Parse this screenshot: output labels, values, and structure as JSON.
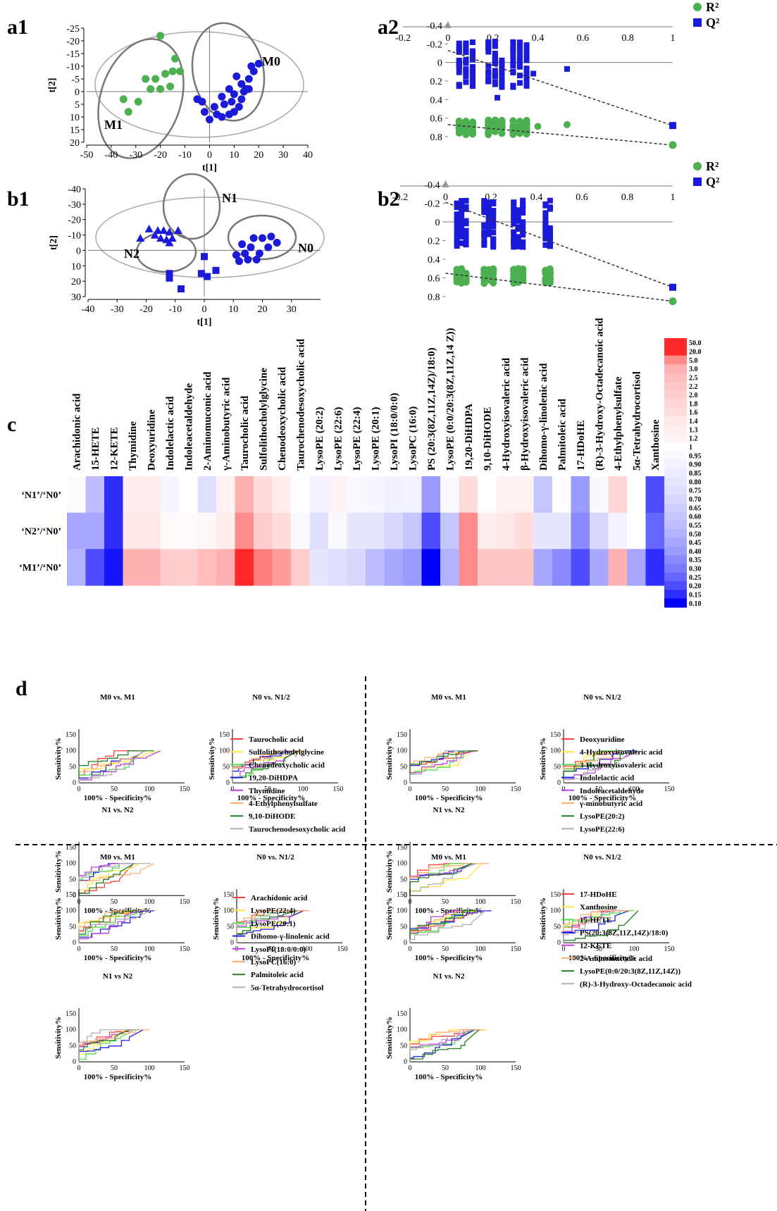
{
  "panels": {
    "a1": "a1",
    "a2": "a2",
    "b1": "b1",
    "b2": "b2",
    "c": "c",
    "d": "d"
  },
  "colors": {
    "green": "#4caf50",
    "blue": "#1a1ad8",
    "line": "#444444"
  },
  "chart_data": [
    {
      "id": "a1",
      "type": "scatter",
      "xlabel": "t[1]",
      "ylabel": "t[2]",
      "xlim": [
        -50,
        40
      ],
      "ylim": [
        -25,
        20
      ],
      "xticks": [
        -50,
        -40,
        -30,
        -20,
        -10,
        0,
        10,
        20,
        30,
        40
      ],
      "yticks": [
        -25,
        -20,
        -15,
        -10,
        -5,
        0,
        5,
        10,
        15,
        20
      ],
      "series": [
        {
          "name": "M1",
          "marker": "circle",
          "color": "#4caf50",
          "points": [
            [
              -33,
              8
            ],
            [
              -29,
              4
            ],
            [
              -35,
              3
            ],
            [
              -24,
              -1
            ],
            [
              -22,
              -5
            ],
            [
              -20,
              -1
            ],
            [
              -16,
              -2
            ],
            [
              -18,
              -7
            ],
            [
              -15,
              -8
            ],
            [
              -12,
              -8
            ],
            [
              -14,
              -13
            ],
            [
              -20,
              -22
            ],
            [
              -26,
              -5
            ]
          ]
        },
        {
          "name": "M0",
          "marker": "circle",
          "color": "#1a1ad8",
          "points": [
            [
              0,
              11
            ],
            [
              3,
              9
            ],
            [
              5,
              10
            ],
            [
              8,
              9
            ],
            [
              10,
              8
            ],
            [
              12,
              6
            ],
            [
              -2,
              8
            ],
            [
              2,
              6
            ],
            [
              6,
              5
            ],
            [
              9,
              4
            ],
            [
              13,
              3
            ],
            [
              -3,
              4
            ],
            [
              5,
              2
            ],
            [
              10,
              1
            ],
            [
              14,
              0
            ],
            [
              16,
              -1
            ],
            [
              13,
              -3
            ],
            [
              16,
              -5
            ],
            [
              11,
              -6
            ],
            [
              18,
              -8
            ],
            [
              20,
              -11
            ],
            [
              17,
              -10
            ],
            [
              15,
              -1
            ],
            [
              -5,
              3
            ],
            [
              8,
              -1
            ]
          ]
        }
      ],
      "group_labels": [
        "M1",
        "M0"
      ]
    },
    {
      "id": "a2",
      "type": "scatter",
      "xlim": [
        -0.2,
        1
      ],
      "ylim": [
        -0.4,
        0.8
      ],
      "xticks": [
        -0.2,
        0,
        0.2,
        0.4,
        0.6,
        0.8,
        1
      ],
      "yticks": [
        -0.4,
        -0.2,
        0,
        0.2,
        0.4,
        0.6,
        0.8
      ],
      "legend": [
        "R²",
        "Q²"
      ],
      "r2_intercept": 0.67,
      "r2_end": 0.89,
      "q2_intercept": -0.13,
      "q2_end": 0.68,
      "extra_r2": [
        [
          0.4,
          0.69
        ],
        [
          0.53,
          0.67
        ]
      ],
      "extra_q2": [
        [
          0.38,
          0.12
        ],
        [
          0.53,
          0.07
        ],
        [
          0.22,
          0.38
        ]
      ]
    },
    {
      "id": "b1",
      "type": "scatter",
      "xlabel": "t[1]",
      "ylabel": "t[2]",
      "xlim": [
        -40,
        40
      ],
      "ylim": [
        -40,
        30
      ],
      "xticks": [
        -40,
        -30,
        -20,
        -10,
        0,
        10,
        20,
        30
      ],
      "yticks": [
        -40,
        -30,
        -20,
        -10,
        0,
        10,
        20,
        30
      ],
      "series": [
        {
          "name": "N1",
          "marker": "square",
          "color": "#1a1ad8",
          "points": [
            [
              -8,
              25
            ],
            [
              -12,
              18
            ],
            [
              -12,
              15
            ],
            [
              -1,
              15
            ],
            [
              1,
              17
            ],
            [
              4,
              13
            ],
            [
              0,
              4
            ]
          ]
        },
        {
          "name": "N0",
          "marker": "circle",
          "color": "#1a1ad8",
          "points": [
            [
              12,
              7
            ],
            [
              15,
              6
            ],
            [
              18,
              6
            ],
            [
              11,
              3
            ],
            [
              14,
              2
            ],
            [
              19,
              2
            ],
            [
              16,
              -2
            ],
            [
              22,
              -2
            ],
            [
              25,
              -5
            ],
            [
              20,
              -8
            ],
            [
              17,
              -8
            ],
            [
              23,
              -9
            ],
            [
              13,
              -4
            ]
          ]
        },
        {
          "name": "N2",
          "marker": "triangle",
          "color": "#1a1ad8",
          "points": [
            [
              -22,
              -8
            ],
            [
              -17,
              -10
            ],
            [
              -15,
              -8
            ],
            [
              -13,
              -7
            ],
            [
              -11,
              -8
            ],
            [
              -16,
              -13
            ],
            [
              -14,
              -13
            ],
            [
              -12,
              -12
            ],
            [
              -9,
              -13
            ],
            [
              -12,
              -5
            ],
            [
              -19,
              -14
            ]
          ]
        }
      ],
      "group_labels": [
        "N1",
        "N0",
        "N2"
      ]
    },
    {
      "id": "b2",
      "type": "scatter",
      "xlim": [
        -0.2,
        1
      ],
      "ylim": [
        -0.4,
        0.8
      ],
      "xticks": [
        -0.2,
        0,
        0.2,
        0.4,
        0.6,
        0.8,
        1
      ],
      "yticks": [
        -0.4,
        -0.2,
        0,
        0.2,
        0.4,
        0.6,
        0.8
      ],
      "legend": [
        "R²",
        "Q²"
      ],
      "r2_intercept": 0.55,
      "r2_end": 0.85,
      "q2_intercept": -0.21,
      "q2_end": 0.7
    },
    {
      "id": "c",
      "type": "heatmap",
      "columns": [
        "Arachidonic acid",
        "15-HETE",
        "12-KETE",
        "Thymidine",
        "Deoxyuridine",
        "Indolelactic acid",
        "Indoleacetaldehyde",
        "2-Aminomuconic acid",
        "γ-Aminobutyric acid",
        "Taurocholic acid",
        "Sulfolithocholylglycine",
        "Chenodeoxycholic acid",
        "Taurochenodesoxycholic acid",
        "LysoPE (20:2)",
        "LysoPE (22:6)",
        "LysoPE (22:4)",
        "LysoPE (20:1)",
        "LysoPI (18:0/0:0)",
        "LysoPC (16:0)",
        "PS (20:3(8Z,11Z,14Z)/18:0)",
        "LysoPE (0:0/20:3(8Z,11Z,14 Z))",
        "19,20-DiHDPA",
        "9,10-DiHODE",
        "4-Hydroxyisovaleric acid",
        "β-Hydroxyisovaleric acid",
        "Dihomo-γ-linolenic acid",
        "Palmitoleic acid",
        "17-HDoHE",
        "(R)-3-Hydroxy-Octadecanoic acid",
        "4-Ethylphenylsulfate",
        "5α-Tetrahydrocortisol",
        "Xanthosine"
      ],
      "rows": [
        "‘N1’/‘N0’",
        "‘N2’/‘N0’",
        "‘M1’/‘N0’"
      ],
      "values": [
        [
          0.97,
          0.55,
          0.15,
          1.3,
          1.3,
          0.92,
          1.0,
          0.75,
          1.2,
          3.0,
          1.6,
          1.3,
          1.03,
          0.9,
          1.2,
          0.95,
          0.92,
          0.88,
          0.9,
          0.4,
          0.95,
          1.6,
          1.0,
          1.2,
          1.2,
          0.6,
          1.03,
          0.4,
          0.95,
          1.8,
          1.0,
          0.2
        ],
        [
          0.45,
          0.45,
          0.15,
          1.4,
          1.4,
          1.05,
          1.05,
          1.1,
          1.3,
          5.0,
          2.0,
          1.6,
          0.95,
          0.75,
          0.95,
          0.8,
          0.8,
          0.7,
          0.6,
          0.2,
          0.6,
          5.0,
          1.3,
          1.4,
          1.6,
          0.8,
          0.8,
          0.35,
          0.7,
          0.9,
          1.0,
          0.25
        ],
        [
          0.5,
          0.2,
          0.12,
          3.0,
          3.0,
          2.0,
          2.0,
          2.5,
          3.0,
          20.0,
          6.0,
          4.0,
          2.0,
          0.8,
          0.75,
          0.7,
          0.55,
          0.45,
          0.4,
          0.1,
          0.5,
          5.0,
          2.2,
          2.2,
          2.2,
          0.45,
          0.35,
          0.2,
          0.45,
          3.0,
          0.45,
          0.15
        ]
      ],
      "colorbar_ticks": [
        "50.0",
        "20.0",
        "5.0",
        "3.0",
        "2.5",
        "2.2",
        "2.0",
        "1.8",
        "1.6",
        "1.4",
        "1.3",
        "1.2",
        "1",
        "0.95",
        "0.90",
        "0.85",
        "0.80",
        "0.75",
        "0.70",
        "0.65",
        "0.60",
        "0.55",
        "0.50",
        "0.45",
        "0.40",
        "0.35",
        "0.30",
        "0.25",
        "0.20",
        "0.15",
        "0.10"
      ]
    },
    {
      "id": "d",
      "type": "line",
      "xlabel": "100% - Specificity%",
      "ylabel": "Sensitivity%",
      "xlim": [
        0,
        150
      ],
      "ylim": [
        0,
        150
      ],
      "ticks": [
        0,
        50,
        100,
        150
      ],
      "groups": [
        {
          "titles": [
            "M0 vs. M1",
            "N0 vs. N1/2",
            "N1 vs. N2"
          ],
          "legend": [
            "Taurocholic acid",
            "Sulfolithocholylglycine",
            "Chenodeoxycholic acid",
            "19,20-DiHDPA",
            "Thymidine",
            "4-Ethylphenylsulfate",
            "9,10-DiHODE",
            "Taurochenodesoxycholic acid"
          ],
          "colors": [
            "#ff4040",
            "#ffe640",
            "#50e050",
            "#2020e0",
            "#c040e0",
            "#ffb070",
            "#208020",
            "#b0b0b0"
          ]
        },
        {
          "titles": [
            "M0 vs. M1",
            "N0 vs. N1/2",
            "N1 vs. N2"
          ],
          "legend": [
            "Deoxyuridine",
            "4-Hydroxyisovaleric acid",
            "3-Hydroxyisovaleric acid",
            "Indolelactic acid",
            "Indoleacetaldehyde",
            "γ-minobutyric acid",
            "LysoPE(20:2)",
            "LysoPE(22:6)"
          ],
          "colors": [
            "#ff4040",
            "#ffe640",
            "#50e050",
            "#2020e0",
            "#c040e0",
            "#ffb070",
            "#208020",
            "#b0b0b0"
          ]
        },
        {
          "titles": [
            "M0 vs. M1",
            "N0 vs. N1/2",
            "N1 vs N2"
          ],
          "legend": [
            "Arachidonic acid",
            "LysoPE(22:4)",
            "LysoPE(20:1)",
            "Dihomo-γ-linolenic acid",
            "LysoPI(18:0/0:0)",
            "LysoPC(16:0)",
            "Palmitoleic acid",
            "5α-Tetrahydrocortisol"
          ],
          "colors": [
            "#ff4040",
            "#ffe640",
            "#50e050",
            "#2020e0",
            "#c040e0",
            "#ffb070",
            "#208020",
            "#b0b0b0"
          ]
        },
        {
          "titles": [
            "M0 vs. M1",
            "N0 vs. N1/2",
            "N1 vs. N2"
          ],
          "legend": [
            "17-HDoHE",
            "Xanthosine",
            "15-HETE",
            "PS(20:3(8Z,11Z,14Z)/18:0)",
            "12-KETE",
            "2-Aminomuconic acid",
            "LysoPE(0:0/20:3(8Z,11Z,14Z))",
            "(R)-3-Hydroxy-Octadecanoic acid"
          ],
          "colors": [
            "#ff4040",
            "#ffe640",
            "#50e050",
            "#2020e0",
            "#c040e0",
            "#ffb070",
            "#208020",
            "#b0b0b0"
          ]
        }
      ]
    }
  ]
}
